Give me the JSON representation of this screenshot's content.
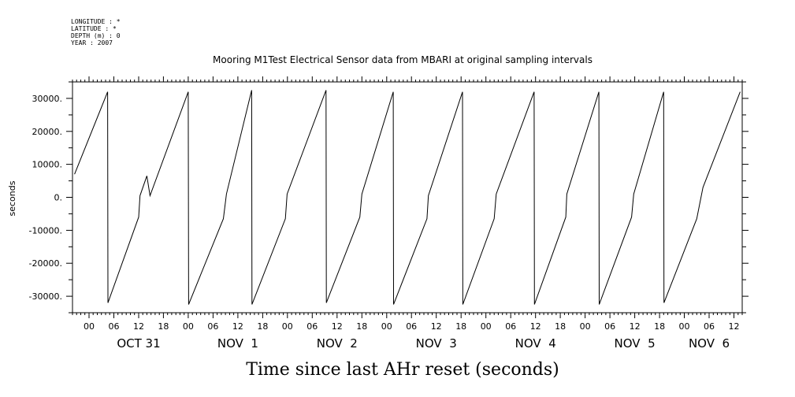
{
  "header": {
    "longitude_line": "LONGITUDE : *",
    "latitude_line": "LATITUDE : *",
    "depth_line": "DEPTH (m) : 0",
    "year_line": "YEAR : 2007"
  },
  "chart_data": {
    "type": "line",
    "title": "Mooring M1Test Electrical Sensor data from MBARI at original sampling intervals",
    "xlabel": "Time since last AHr reset (seconds)",
    "ylabel": "seconds",
    "xlim": [
      "2007-10-30T20:00",
      "2007-11-06T14:00"
    ],
    "ylim": [
      -35000,
      35000
    ],
    "grid": false,
    "y_ticks": [
      -30000,
      -20000,
      -10000,
      0,
      10000,
      20000,
      30000
    ],
    "y_tick_labels": [
      "-30000.",
      "-20000.",
      "-10000.",
      "0.",
      "10000.",
      "20000.",
      "30000."
    ],
    "x_hour_ticks": [
      {
        "t": "2007-10-31T00:00",
        "label": "00"
      },
      {
        "t": "2007-10-31T06:00",
        "label": "06"
      },
      {
        "t": "2007-10-31T12:00",
        "label": "12"
      },
      {
        "t": "2007-10-31T18:00",
        "label": "18"
      },
      {
        "t": "2007-11-01T00:00",
        "label": "00"
      },
      {
        "t": "2007-11-01T06:00",
        "label": "06"
      },
      {
        "t": "2007-11-01T12:00",
        "label": "12"
      },
      {
        "t": "2007-11-01T18:00",
        "label": "18"
      },
      {
        "t": "2007-11-02T00:00",
        "label": "00"
      },
      {
        "t": "2007-11-02T06:00",
        "label": "06"
      },
      {
        "t": "2007-11-02T12:00",
        "label": "12"
      },
      {
        "t": "2007-11-02T18:00",
        "label": "18"
      },
      {
        "t": "2007-11-03T00:00",
        "label": "00"
      },
      {
        "t": "2007-11-03T06:00",
        "label": "06"
      },
      {
        "t": "2007-11-03T12:00",
        "label": "12"
      },
      {
        "t": "2007-11-03T18:00",
        "label": "18"
      },
      {
        "t": "2007-11-04T00:00",
        "label": "00"
      },
      {
        "t": "2007-11-04T06:00",
        "label": "06"
      },
      {
        "t": "2007-11-04T12:00",
        "label": "12"
      },
      {
        "t": "2007-11-04T18:00",
        "label": "18"
      },
      {
        "t": "2007-11-05T00:00",
        "label": "00"
      },
      {
        "t": "2007-11-05T06:00",
        "label": "06"
      },
      {
        "t": "2007-11-05T12:00",
        "label": "12"
      },
      {
        "t": "2007-11-05T18:00",
        "label": "18"
      },
      {
        "t": "2007-11-06T00:00",
        "label": "00"
      },
      {
        "t": "2007-11-06T06:00",
        "label": "06"
      },
      {
        "t": "2007-11-06T12:00",
        "label": "12"
      }
    ],
    "x_day_labels": [
      {
        "t": "2007-10-31T12:00",
        "label": "OCT 31"
      },
      {
        "t": "2007-11-01T12:00",
        "label": "NOV  1"
      },
      {
        "t": "2007-11-02T12:00",
        "label": "NOV  2"
      },
      {
        "t": "2007-11-03T12:00",
        "label": "NOV  3"
      },
      {
        "t": "2007-11-04T12:00",
        "label": "NOV  4"
      },
      {
        "t": "2007-11-05T12:00",
        "label": "NOV  5"
      },
      {
        "t": "2007-11-06T06:00",
        "label": "NOV  6"
      }
    ],
    "series": [
      {
        "points": [
          [
            "2007-10-30T20:30",
            7000
          ],
          [
            "2007-10-31T04:30",
            32000
          ],
          [
            "2007-10-31T04:35",
            -32000
          ],
          [
            "2007-10-31T12:00",
            -6000
          ],
          [
            "2007-10-31T12:20",
            500
          ],
          [
            "2007-10-31T14:00",
            6500
          ],
          [
            "2007-10-31T14:45",
            500
          ],
          [
            "2007-11-01T00:00",
            32000
          ],
          [
            "2007-11-01T00:05",
            -32500
          ],
          [
            "2007-11-01T08:30",
            -6500
          ],
          [
            "2007-11-01T09:15",
            1000
          ],
          [
            "2007-11-01T15:20",
            32500
          ],
          [
            "2007-11-01T15:25",
            -32500
          ],
          [
            "2007-11-01T23:30",
            -6500
          ],
          [
            "2007-11-01T23:55",
            1000
          ],
          [
            "2007-11-02T09:20",
            32500
          ],
          [
            "2007-11-02T09:25",
            -32000
          ],
          [
            "2007-11-02T17:30",
            -6000
          ],
          [
            "2007-11-02T18:00",
            1000
          ],
          [
            "2007-11-03T01:35",
            32000
          ],
          [
            "2007-11-03T01:40",
            -32500
          ],
          [
            "2007-11-03T09:45",
            -6500
          ],
          [
            "2007-11-03T10:05",
            500
          ],
          [
            "2007-11-03T18:20",
            32000
          ],
          [
            "2007-11-03T18:25",
            -32500
          ],
          [
            "2007-11-04T02:00",
            -6500
          ],
          [
            "2007-11-04T02:30",
            1000
          ],
          [
            "2007-11-04T11:40",
            32000
          ],
          [
            "2007-11-04T11:45",
            -32500
          ],
          [
            "2007-11-04T19:20",
            -6000
          ],
          [
            "2007-11-04T19:35",
            1000
          ],
          [
            "2007-11-05T03:20",
            32000
          ],
          [
            "2007-11-05T03:25",
            -32500
          ],
          [
            "2007-11-05T11:15",
            -6000
          ],
          [
            "2007-11-05T11:45",
            1000
          ],
          [
            "2007-11-05T19:00",
            32000
          ],
          [
            "2007-11-05T19:05",
            -32000
          ],
          [
            "2007-11-06T03:00",
            -6500
          ],
          [
            "2007-11-06T04:30",
            3000
          ],
          [
            "2007-11-06T13:30",
            32000
          ]
        ]
      }
    ]
  }
}
